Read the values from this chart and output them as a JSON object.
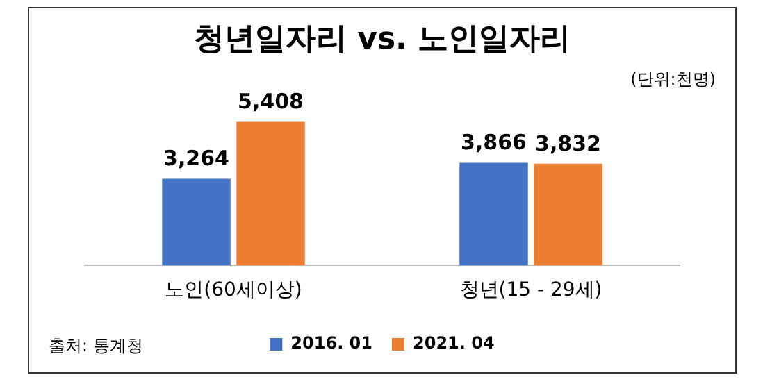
{
  "chart_data": {
    "type": "bar",
    "title": "청년일자리 vs. 노인일자리",
    "categories": [
      "노인(60세이상)",
      "청년(15 - 29세)"
    ],
    "series": [
      {
        "name": "2016. 01",
        "color": "#4472c4",
        "values": [
          3264,
          3866
        ],
        "value_labels": [
          "3,264",
          "3,866"
        ]
      },
      {
        "name": "2021. 04",
        "color": "#ed7d31",
        "values": [
          5408,
          3832
        ],
        "value_labels": [
          "5,408",
          "3,832"
        ]
      }
    ],
    "legend": "bottom",
    "grid": false,
    "tick_labels": "x",
    "annotations": [
      "(단위:천명)",
      "출처: 통계청"
    ]
  }
}
